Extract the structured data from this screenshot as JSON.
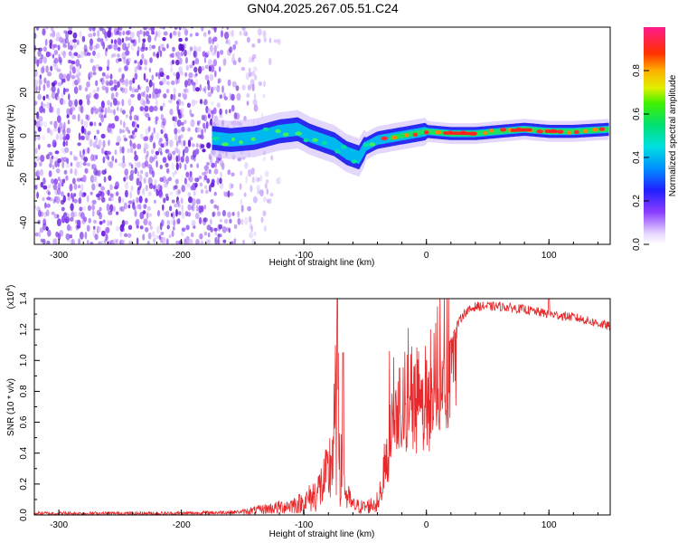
{
  "title": "GN04.2025.267.05.51.C24",
  "chart_data": [
    {
      "type": "heatmap",
      "name": "spectrogram",
      "xlabel": "Height of straight line (km)",
      "ylabel": "Frequency (Hz)",
      "xlim": [
        -320,
        150
      ],
      "ylim": [
        -50,
        50
      ],
      "xticks": [
        -300,
        -200,
        -100,
        0,
        100
      ],
      "xtick_labels": [
        "-300",
        "-200",
        "-100",
        "0",
        "100"
      ],
      "yticks": [
        -40,
        -20,
        0,
        20,
        40
      ],
      "ytick_labels": [
        "-40",
        "-20",
        "0",
        "20",
        "40"
      ],
      "noise_region_km": [
        -320,
        -175
      ],
      "ridge": {
        "x": [
          -175,
          -160,
          -140,
          -120,
          -105,
          -95,
          -85,
          -75,
          -65,
          -55,
          -50,
          -40,
          -30,
          -20,
          -10,
          0,
          20,
          40,
          60,
          80,
          100,
          120,
          150
        ],
        "y": [
          -1,
          -2,
          -1,
          2,
          3,
          0,
          -2,
          -4,
          -8,
          -10,
          -5,
          -2,
          -1,
          0,
          1,
          2,
          1,
          1,
          2,
          3,
          2,
          2,
          3
        ]
      },
      "colorbar": {
        "label": "Normalized spectral amplitude",
        "range": [
          0.0,
          1.0
        ],
        "ticks": [
          0.0,
          0.2,
          0.4,
          0.6,
          0.8
        ],
        "tick_labels": [
          "0.0",
          "0.2",
          "0.4",
          "0.6",
          "0.8"
        ]
      }
    },
    {
      "type": "line",
      "name": "snr",
      "xlabel": "Height of straight line (km)",
      "ylabel": "SNR (10 * v/v)",
      "y_multiplier": "(x10",
      "y_multiplier_exp": "4",
      "xlim": [
        -320,
        150
      ],
      "ylim": [
        0,
        1.4
      ],
      "xticks": [
        -300,
        -200,
        -100,
        0,
        100
      ],
      "xtick_labels": [
        "-300",
        "-200",
        "-100",
        "0",
        "100"
      ],
      "yticks": [
        0.0,
        0.2,
        0.4,
        0.6,
        0.8,
        1.0,
        1.2,
        1.4
      ],
      "ytick_labels": [
        "0.0",
        "0.2",
        "0.4",
        "0.6",
        "0.8",
        "1.0",
        "1.2",
        "1.4"
      ],
      "color": "#e8282a",
      "envelope": {
        "x": [
          -320,
          -200,
          -150,
          -120,
          -100,
          -90,
          -80,
          -75,
          -72,
          -70,
          -65,
          -60,
          -50,
          -40,
          -35,
          -30,
          -25,
          -20,
          -15,
          -10,
          -5,
          0,
          5,
          10,
          15,
          20,
          30,
          40,
          60,
          80,
          100,
          120,
          150
        ],
        "y": [
          0.01,
          0.01,
          0.02,
          0.05,
          0.08,
          0.14,
          0.25,
          0.5,
          0.9,
          0.3,
          0.12,
          0.06,
          0.05,
          0.08,
          0.2,
          0.6,
          0.85,
          0.6,
          0.9,
          0.7,
          0.9,
          0.8,
          0.85,
          1.0,
          1.05,
          1.15,
          1.3,
          1.35,
          1.35,
          1.33,
          1.3,
          1.28,
          1.22
        ]
      },
      "peaks": {
        "x": [
          -68,
          -22,
          -10,
          0,
          100
        ],
        "y": [
          1.05,
          0.95,
          0.96,
          1.0,
          1.42
        ]
      }
    }
  ]
}
